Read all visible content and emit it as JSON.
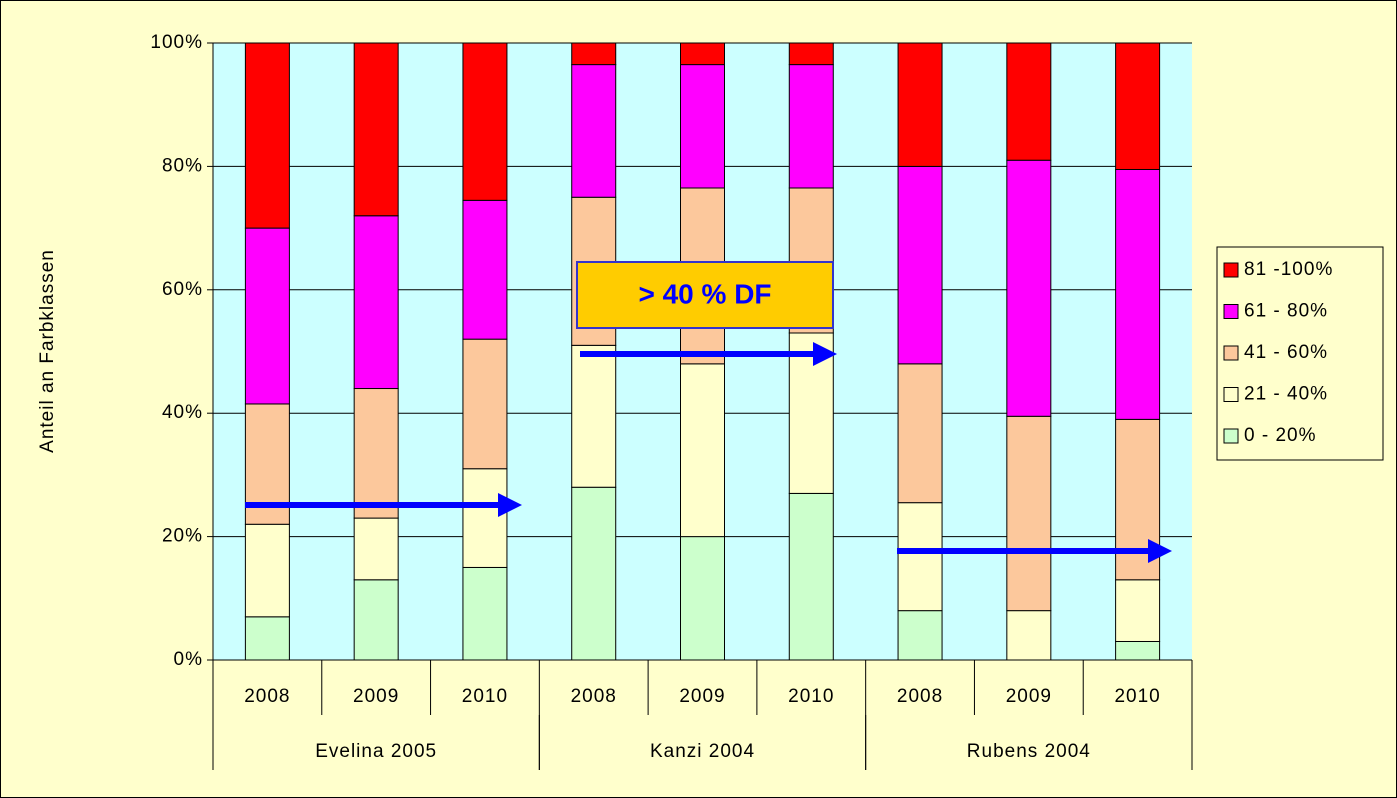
{
  "chart_data": {
    "type": "stacked_bar",
    "y_label": "Anteil an Farbklassen",
    "categories": [
      "2008",
      "2009",
      "2010",
      "2008",
      "2009",
      "2010",
      "2008",
      "2009",
      "2010"
    ],
    "groups": [
      {
        "name": "Evelina 2005",
        "span": 3
      },
      {
        "name": "Kanzi 2004",
        "span": 3
      },
      {
        "name": "Rubens 2004",
        "span": 3
      }
    ],
    "series": [
      {
        "name": "0 - 20%",
        "color": "#ccffcc",
        "values": [
          7,
          13,
          15,
          28,
          20,
          27,
          8,
          0,
          3
        ]
      },
      {
        "name": "21 - 40%",
        "color": "#ffffcc",
        "values": [
          15,
          10,
          16,
          23,
          28,
          26,
          17.5,
          8,
          10
        ]
      },
      {
        "name": "41 - 60%",
        "color": "#fcc89c",
        "values": [
          19.5,
          21,
          21,
          24,
          28.5,
          23.5,
          22.5,
          31.5,
          26
        ]
      },
      {
        "name": "61 - 80%",
        "color": "#ff00ff",
        "values": [
          28.5,
          28,
          22.5,
          21.5,
          20,
          20,
          32,
          41.5,
          40.5
        ]
      },
      {
        "name": "81 -100%",
        "color": "#ff0000",
        "values": [
          30,
          28,
          25.5,
          3.5,
          3.5,
          3.5,
          20,
          19,
          20.5
        ]
      }
    ],
    "ylim": [
      0,
      100
    ],
    "yticks": [
      {
        "value": 0,
        "label": "0%"
      },
      {
        "value": 20,
        "label": "20%"
      },
      {
        "value": 40,
        "label": "40%"
      },
      {
        "value": 60,
        "label": "60%"
      },
      {
        "value": 80,
        "label": "80%"
      },
      {
        "value": 100,
        "label": "100%"
      }
    ],
    "grid": true,
    "legend": "right",
    "annotations": [
      "> 40 % DF"
    ]
  }
}
